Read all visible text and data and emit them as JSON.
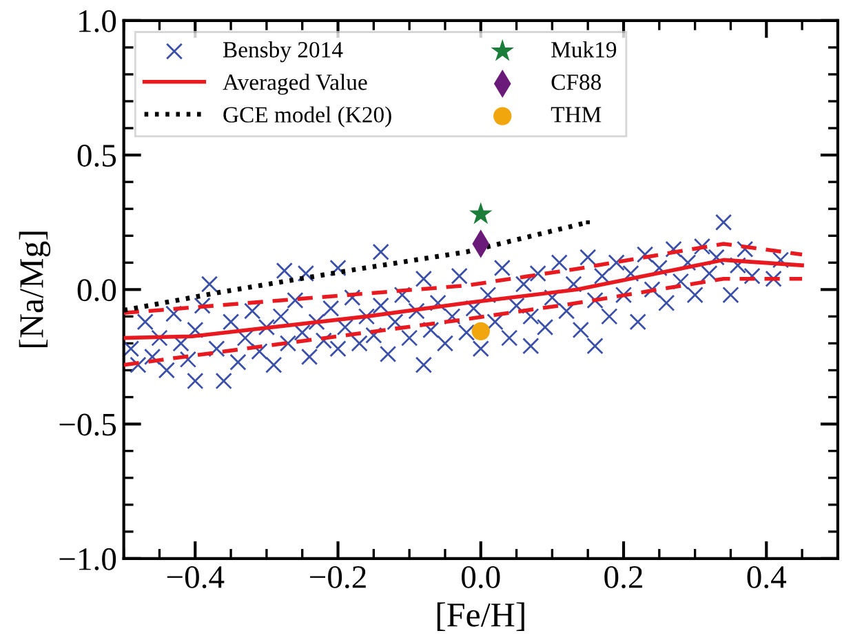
{
  "chart_data": {
    "type": "scatter",
    "xlabel": "[Fe/H]",
    "ylabel": "[Na/Mg]",
    "xlim": [
      -0.5,
      0.5
    ],
    "ylim": [
      -1.0,
      1.0
    ],
    "xticks": [
      {
        "value": -0.4,
        "label": "−0.4"
      },
      {
        "value": -0.2,
        "label": "−0.2"
      },
      {
        "value": 0.0,
        "label": "0.0"
      },
      {
        "value": 0.2,
        "label": "0.2"
      },
      {
        "value": 0.4,
        "label": "0.4"
      }
    ],
    "yticks": [
      {
        "value": -1.0,
        "label": "−1.0"
      },
      {
        "value": -0.5,
        "label": "−0.5"
      },
      {
        "value": 0.0,
        "label": "0.0"
      },
      {
        "value": 0.5,
        "label": "0.5"
      },
      {
        "value": 1.0,
        "label": "1.0"
      }
    ],
    "legend": "top left",
    "grid": false,
    "series": [
      {
        "name": "Bensby 2014",
        "marker": "cross",
        "color": "#3a4fa8",
        "x": [
          -0.49,
          -0.48,
          -0.47,
          -0.46,
          -0.45,
          -0.44,
          -0.43,
          -0.42,
          -0.41,
          -0.4,
          -0.4,
          -0.39,
          -0.38,
          -0.37,
          -0.36,
          -0.35,
          -0.34,
          -0.33,
          -0.32,
          -0.31,
          -0.3,
          -0.29,
          -0.28,
          -0.275,
          -0.27,
          -0.26,
          -0.25,
          -0.245,
          -0.24,
          -0.23,
          -0.22,
          -0.21,
          -0.2,
          -0.2,
          -0.19,
          -0.18,
          -0.17,
          -0.16,
          -0.15,
          -0.14,
          -0.14,
          -0.13,
          -0.12,
          -0.11,
          -0.1,
          -0.09,
          -0.08,
          -0.08,
          -0.07,
          -0.06,
          -0.05,
          -0.04,
          -0.03,
          -0.02,
          -0.01,
          0.0,
          0.01,
          0.02,
          0.03,
          0.04,
          0.05,
          0.06,
          0.07,
          0.07,
          0.08,
          0.09,
          0.1,
          0.11,
          0.12,
          0.13,
          0.14,
          0.15,
          0.16,
          0.16,
          0.17,
          0.18,
          0.19,
          0.2,
          0.21,
          0.22,
          0.23,
          0.24,
          0.25,
          0.26,
          0.27,
          0.28,
          0.29,
          0.3,
          0.31,
          0.32,
          0.33,
          0.34,
          0.35,
          0.36,
          0.37,
          0.38,
          0.41,
          0.42
        ],
        "values": [
          -0.22,
          -0.28,
          -0.12,
          -0.25,
          -0.18,
          -0.3,
          -0.09,
          -0.2,
          -0.26,
          -0.34,
          -0.15,
          -0.06,
          0.02,
          -0.22,
          -0.34,
          -0.12,
          -0.27,
          -0.18,
          -0.08,
          -0.23,
          -0.14,
          -0.28,
          -0.1,
          0.07,
          -0.2,
          -0.04,
          -0.16,
          0.06,
          -0.25,
          -0.12,
          -0.19,
          -0.07,
          0.08,
          -0.22,
          -0.14,
          -0.03,
          -0.2,
          -0.1,
          -0.17,
          0.14,
          -0.06,
          -0.24,
          -0.12,
          -0.02,
          -0.18,
          -0.08,
          -0.28,
          0.04,
          -0.15,
          -0.05,
          -0.2,
          -0.1,
          0.05,
          -0.16,
          -0.07,
          -0.22,
          -0.02,
          -0.12,
          0.08,
          -0.18,
          -0.06,
          0.02,
          -0.21,
          -0.1,
          0.06,
          -0.14,
          -0.03,
          0.1,
          -0.08,
          0.02,
          -0.15,
          0.12,
          -0.21,
          -0.04,
          0.05,
          -0.1,
          0.1,
          -0.02,
          0.06,
          -0.12,
          0.13,
          0.0,
          0.08,
          -0.05,
          0.15,
          0.03,
          0.1,
          -0.02,
          0.16,
          0.06,
          0.12,
          0.25,
          -0.02,
          0.09,
          0.15,
          0.05,
          0.04,
          0.11
        ]
      },
      {
        "name": "Averaged Value",
        "type": "line",
        "line_style": "solid",
        "color": "#e8191f",
        "x": [
          -0.5,
          -0.404,
          -0.16,
          -0.02,
          0.135,
          0.34,
          0.45
        ],
        "values": [
          -0.18,
          -0.174,
          -0.1,
          -0.05,
          0.0,
          0.11,
          0.09
        ]
      },
      {
        "type": "line",
        "line_style": "dashed",
        "color": "#e8191f",
        "x": [
          -0.5,
          -0.02,
          0.135,
          0.34,
          0.45
        ],
        "values": [
          -0.087,
          0.015,
          0.077,
          0.17,
          0.13
        ]
      },
      {
        "type": "line",
        "line_style": "dashed",
        "color": "#e8191f",
        "x": [
          -0.5,
          -0.02,
          0.135,
          0.34,
          0.45
        ],
        "values": [
          -0.28,
          -0.11,
          -0.05,
          0.04,
          0.04
        ]
      },
      {
        "name": "GCE model (K20)",
        "type": "line",
        "line_style": "dotted",
        "color": "#000000",
        "x": [
          -0.5,
          -0.365,
          -0.17,
          -0.02,
          0.15
        ],
        "values": [
          -0.077,
          -0.01,
          0.077,
          0.14,
          0.25
        ]
      },
      {
        "name": "Muk19",
        "marker": "star",
        "color": "#1b7d3a",
        "x": [
          0.0
        ],
        "values": [
          0.28
        ]
      },
      {
        "name": "CF88",
        "marker": "diamond",
        "color": "#6a1b7a",
        "x": [
          0.0
        ],
        "values": [
          0.17
        ]
      },
      {
        "name": "THM",
        "marker": "circle",
        "color": "#f2a60e",
        "x": [
          0.0
        ],
        "values": [
          -0.155
        ]
      }
    ]
  }
}
